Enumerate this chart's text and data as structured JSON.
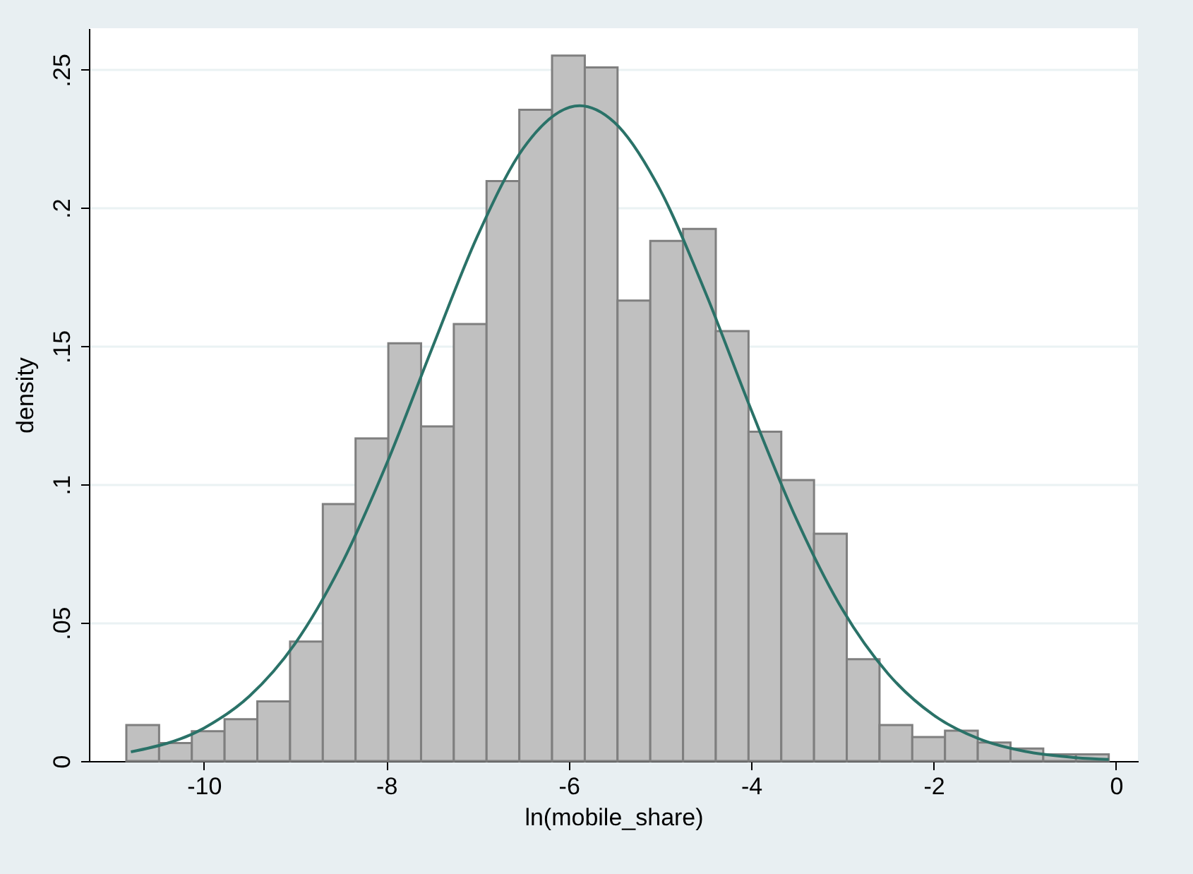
{
  "chart_data": {
    "type": "histogram",
    "xlabel": "ln(mobile_share)",
    "ylabel": "density",
    "bins": [
      -10.85,
      -10.491,
      -10.132,
      -9.773,
      -9.414,
      -9.055,
      -8.696,
      -8.337,
      -7.978,
      -7.619,
      -7.26,
      -6.901,
      -6.542,
      -6.183,
      -5.824,
      -5.465,
      -5.106,
      -4.747,
      -4.388,
      -4.029,
      -3.67,
      -3.311,
      -2.952,
      -2.593,
      -2.234,
      -1.875,
      -1.516,
      -1.157,
      -0.798,
      -0.439,
      -0.08
    ],
    "values": [
      0.013,
      0.0065,
      0.0108,
      0.0151,
      0.0216,
      0.0432,
      0.0929,
      0.1167,
      0.1511,
      0.121,
      0.158,
      0.2097,
      0.2355,
      0.2551,
      0.2508,
      0.1665,
      0.1881,
      0.1924,
      0.1555,
      0.1191,
      0.1016,
      0.0822,
      0.0368,
      0.013,
      0.0087,
      0.011,
      0.0067,
      0.0045,
      0.0024,
      0.0024
    ],
    "color": "#c0c0c0",
    "series": [
      {
        "type": "line",
        "color": "#2a7268",
        "x": [
          -10.8,
          -10,
          -9.5,
          -9,
          -8.5,
          -8,
          -7.5,
          -7,
          -6.5,
          -5.88,
          -5.5,
          -5,
          -4.5,
          -4,
          -3.5,
          -3,
          -2.5,
          -2,
          -1.5,
          -1,
          -0.5,
          -0.08
        ],
        "values": [
          0.0033,
          0.0119,
          0.0235,
          0.0425,
          0.0706,
          0.1072,
          0.1491,
          0.1899,
          0.2215,
          0.237,
          0.231,
          0.2067,
          0.1693,
          0.127,
          0.0872,
          0.0548,
          0.0316,
          0.0166,
          0.008,
          0.0035,
          0.0014,
          0.0006
        ]
      }
    ],
    "xlim": [
      -11.26,
      0.24
    ],
    "xticks": [
      -10,
      -8,
      -6,
      -4,
      -2,
      0
    ],
    "ylim": [
      0,
      0.265
    ],
    "yticks": [
      0,
      {
        "value": 0.05,
        "label": ".05"
      },
      {
        "value": 0.1,
        "label": ".1"
      },
      {
        "value": 0.15,
        "label": ".15"
      },
      {
        "value": 0.2,
        "label": ".2"
      },
      {
        "value": 0.25,
        "label": ".25"
      }
    ],
    "grid": "y"
  }
}
